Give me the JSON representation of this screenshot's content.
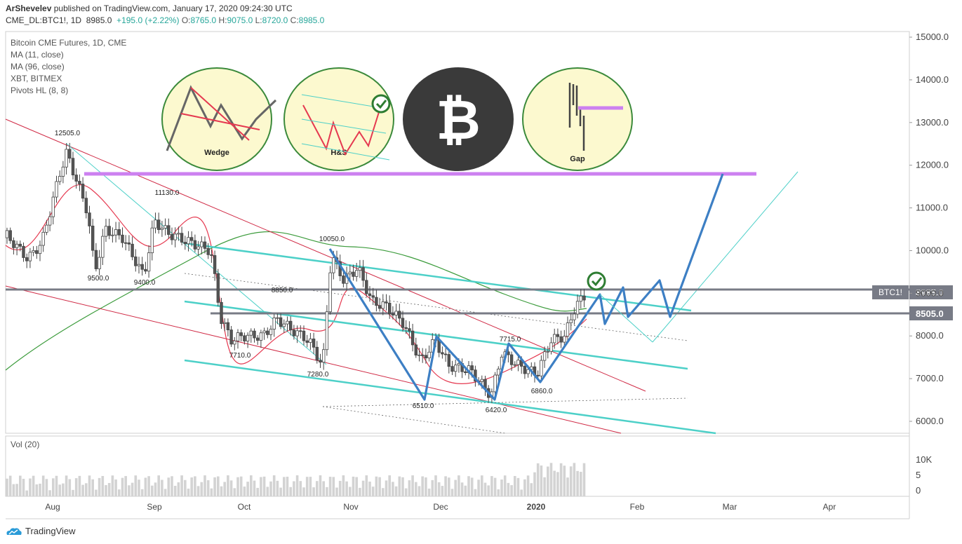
{
  "header": {
    "author": "ArShevelev",
    "published_text": "published on TradingView.com, January 17, 2020 09:24:30 UTC",
    "symbol": "CME_DL:BTC1!, 1D",
    "last": "8985.0",
    "change": "+195.0 (+2.22%)",
    "o_label": "O:",
    "o": "8765.0",
    "h_label": "H:",
    "h": "9075.0",
    "l_label": "L:",
    "l": "8720.0",
    "c_label": "C:",
    "c": "8985.0"
  },
  "legend": {
    "title": "Bitcoin CME Futures, 1D, CME",
    "ma1": "MA (11, close)",
    "ma2": "MA (96, close)",
    "compare": "XBT, BITMEX",
    "pivots": "Pivots HL (8, 8)",
    "volume": "Vol (20)"
  },
  "chart_data": {
    "type": "candlestick",
    "y_axis": {
      "ticks": [
        6000,
        7000,
        8000,
        9000,
        10000,
        11000,
        12000,
        13000,
        14000,
        15000
      ],
      "tick_labels": [
        "6000.0",
        "7000.0",
        "8000.0",
        "9000.0",
        "10000.0",
        "11000.0",
        "12000.0",
        "13000.0",
        "14000.0",
        "15000.0"
      ],
      "range": [
        5800,
        15100
      ]
    },
    "x_axis": {
      "labels": [
        "Aug",
        "Sep",
        "Oct",
        "Nov",
        "Dec",
        "2020",
        "Feb",
        "Mar",
        "Apr"
      ]
    },
    "volume_axis": {
      "tick_labels": [
        "10K",
        "5",
        "0"
      ]
    },
    "price_tags": [
      {
        "label": "BTC1!",
        "value": "8985.0",
        "color": "#787b86"
      },
      {
        "label": "",
        "value": "8505.0",
        "color": "#787b86"
      }
    ],
    "pivots": [
      {
        "text": "12505.0"
      },
      {
        "text": "11130.0"
      },
      {
        "text": "9500.0"
      },
      {
        "text": "9400.0"
      },
      {
        "text": "7710.0"
      },
      {
        "text": "8850.0"
      },
      {
        "text": "7280.0"
      },
      {
        "text": "10050.0"
      },
      {
        "text": "6510.0"
      },
      {
        "text": "6420.0"
      },
      {
        "text": "7715.0"
      },
      {
        "text": "6860.0"
      }
    ],
    "horizontal_levels": [
      8985.0,
      8505.0,
      11760
    ],
    "pattern_icons": [
      {
        "name": "wedge",
        "caption": "Wedge"
      },
      {
        "name": "head-and-shoulders",
        "caption": "H&S"
      },
      {
        "name": "bitcoin",
        "caption": ""
      },
      {
        "name": "gap",
        "caption": "Gap"
      }
    ],
    "colors": {
      "up": "#ffffff",
      "down": "#555555",
      "ma_fast": "#e53950",
      "ma_slow": "#3b9b3b",
      "channel": "#4dd0c8",
      "projection": "#3d7fc4",
      "resistance": "#cc80f0",
      "trend": "#d02a45"
    }
  },
  "branding": {
    "footer": "TradingView"
  }
}
